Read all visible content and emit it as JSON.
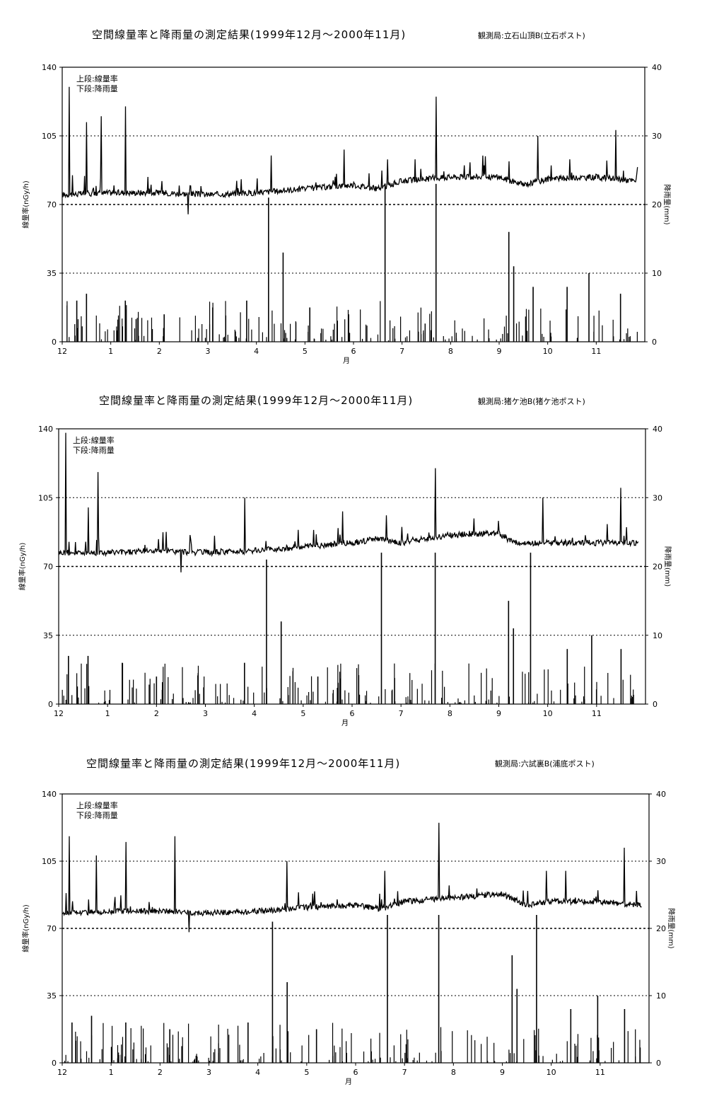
{
  "charts": [
    {
      "title": "空間線量率と降雨量の測定結果(1999年12月～2000年11月)",
      "station": "観測局:立石山頂B(立石ポスト)",
      "legend": [
        "上段:線量率",
        "下段:降雨量"
      ],
      "ylabel_left": "線量率(nGy/h)",
      "ylabel_right": "降雨量(mm)",
      "xlabel": "月"
    },
    {
      "title": "空間線量率と降雨量の測定結果(1999年12月～2000年11月)",
      "station": "観測局:猪ケ池B(猪ケ池ポスト)",
      "legend": [
        "上段:線量率",
        "下段:降雨量"
      ],
      "ylabel_left": "線量率(nGy/h)",
      "ylabel_right": "降雨量(mm)",
      "xlabel": "月"
    },
    {
      "title": "空間線量率と降雨量の測定結果(1999年12月～2000年11月)",
      "station": "観測局:六試裏B(浦底ポスト)",
      "legend": [
        "上段:線量率",
        "下段:降雨量"
      ],
      "ylabel_left": "線量率(nGy/h)",
      "ylabel_right": "降雨量(mm)",
      "xlabel": "月"
    }
  ],
  "chart_data": [
    {
      "type": "line",
      "x_months": [
        "12",
        "1",
        "2",
        "3",
        "4",
        "5",
        "6",
        "7",
        "8",
        "9",
        "10",
        "11"
      ],
      "y_left_range": [
        0,
        140
      ],
      "y_left_ticks": [
        0,
        35,
        70,
        105,
        140
      ],
      "y_right_range": [
        0,
        40
      ],
      "y_right_ticks": [
        0,
        10,
        20,
        30,
        40
      ],
      "dose_baseline": [
        [
          0,
          75
        ],
        [
          1,
          76
        ],
        [
          2,
          76
        ],
        [
          3,
          75
        ],
        [
          4,
          76
        ],
        [
          5,
          78
        ],
        [
          6,
          80
        ],
        [
          6.5,
          78
        ],
        [
          7,
          82
        ],
        [
          8,
          84
        ],
        [
          9,
          84
        ],
        [
          9.5,
          80
        ],
        [
          10,
          83
        ],
        [
          11,
          84
        ],
        [
          11.8,
          82
        ]
      ],
      "dose_spikes": [
        [
          0.15,
          130
        ],
        [
          0.5,
          112
        ],
        [
          0.8,
          115
        ],
        [
          1.3,
          120
        ],
        [
          2.6,
          65
        ],
        [
          4.3,
          95
        ],
        [
          5.8,
          98
        ],
        [
          6.7,
          93
        ],
        [
          7.7,
          125
        ],
        [
          9.2,
          92
        ],
        [
          9.8,
          105
        ],
        [
          11.4,
          108
        ]
      ],
      "rain_spikes": [
        [
          0.3,
          6
        ],
        [
          0.5,
          7
        ],
        [
          1.3,
          6
        ],
        [
          2.1,
          4
        ],
        [
          3.1,
          5
        ],
        [
          3.8,
          6
        ],
        [
          4.25,
          21
        ],
        [
          4.55,
          13
        ],
        [
          5.1,
          5
        ],
        [
          5.9,
          4
        ],
        [
          6.65,
          23
        ],
        [
          7.7,
          23
        ],
        [
          9.2,
          16
        ],
        [
          9.3,
          11
        ],
        [
          9.7,
          8
        ],
        [
          10.4,
          8
        ],
        [
          10.85,
          10
        ],
        [
          11.5,
          7
        ]
      ],
      "gridlines": true,
      "legend_position": "top-left"
    },
    {
      "type": "line",
      "x_months": [
        "12",
        "1",
        "2",
        "3",
        "4",
        "5",
        "6",
        "7",
        "8",
        "9",
        "10",
        "11"
      ],
      "y_left_range": [
        0,
        140
      ],
      "y_left_ticks": [
        0,
        35,
        70,
        105,
        140
      ],
      "y_right_range": [
        0,
        40
      ],
      "y_right_ticks": [
        0,
        10,
        20,
        30,
        40
      ],
      "dose_baseline": [
        [
          0,
          77
        ],
        [
          1,
          77
        ],
        [
          2,
          78
        ],
        [
          3,
          77
        ],
        [
          4,
          78
        ],
        [
          5,
          80
        ],
        [
          6,
          82
        ],
        [
          6.5,
          84
        ],
        [
          7,
          82
        ],
        [
          8,
          86
        ],
        [
          9,
          87
        ],
        [
          9.3,
          82
        ],
        [
          10,
          82
        ],
        [
          11,
          82
        ],
        [
          11.8,
          82
        ]
      ],
      "dose_spikes": [
        [
          0.15,
          138
        ],
        [
          0.6,
          100
        ],
        [
          0.8,
          118
        ],
        [
          2.5,
          67
        ],
        [
          3.8,
          105
        ],
        [
          5.8,
          98
        ],
        [
          6.7,
          96
        ],
        [
          7.7,
          120
        ],
        [
          9.9,
          105
        ],
        [
          11.5,
          110
        ]
      ],
      "rain_spikes": [
        [
          0.2,
          7
        ],
        [
          0.6,
          7
        ],
        [
          1.3,
          6
        ],
        [
          2.0,
          4
        ],
        [
          3.8,
          6
        ],
        [
          4.25,
          21
        ],
        [
          4.55,
          12
        ],
        [
          5.3,
          4
        ],
        [
          6.6,
          22
        ],
        [
          7.7,
          22
        ],
        [
          9.2,
          15
        ],
        [
          9.3,
          11
        ],
        [
          9.65,
          22
        ],
        [
          10.4,
          8
        ],
        [
          10.9,
          10
        ],
        [
          11.5,
          8
        ]
      ],
      "gridlines": true,
      "legend_position": "top-left"
    },
    {
      "type": "line",
      "x_months": [
        "12",
        "1",
        "2",
        "3",
        "4",
        "5",
        "6",
        "7",
        "8",
        "9",
        "10",
        "11"
      ],
      "y_left_range": [
        0,
        140
      ],
      "y_left_ticks": [
        0,
        35,
        70,
        105,
        140
      ],
      "y_right_range": [
        0,
        40
      ],
      "y_right_ticks": [
        0,
        10,
        20,
        30,
        40
      ],
      "dose_baseline": [
        [
          0,
          78
        ],
        [
          1,
          79
        ],
        [
          2,
          79
        ],
        [
          3,
          78
        ],
        [
          4,
          79
        ],
        [
          5,
          81
        ],
        [
          6,
          82
        ],
        [
          6.5,
          80
        ],
        [
          7,
          84
        ],
        [
          8,
          86
        ],
        [
          9,
          88
        ],
        [
          9.5,
          82
        ],
        [
          10,
          84
        ],
        [
          11,
          84
        ],
        [
          11.8,
          82
        ]
      ],
      "dose_spikes": [
        [
          0.15,
          118
        ],
        [
          0.7,
          108
        ],
        [
          1.3,
          115
        ],
        [
          2.3,
          118
        ],
        [
          2.6,
          68
        ],
        [
          4.6,
          105
        ],
        [
          6.6,
          100
        ],
        [
          7.7,
          125
        ],
        [
          9.9,
          100
        ],
        [
          10.3,
          100
        ],
        [
          11.5,
          112
        ]
      ],
      "rain_spikes": [
        [
          0.2,
          6
        ],
        [
          0.6,
          7
        ],
        [
          1.3,
          6
        ],
        [
          2.2,
          5
        ],
        [
          3.8,
          6
        ],
        [
          4.3,
          21
        ],
        [
          4.6,
          12
        ],
        [
          5.2,
          5
        ],
        [
          6.65,
          22
        ],
        [
          7.7,
          22
        ],
        [
          9.2,
          16
        ],
        [
          9.3,
          11
        ],
        [
          9.7,
          22
        ],
        [
          10.4,
          8
        ],
        [
          10.95,
          10
        ],
        [
          11.5,
          8
        ]
      ],
      "gridlines": true,
      "legend_position": "top-left"
    }
  ]
}
